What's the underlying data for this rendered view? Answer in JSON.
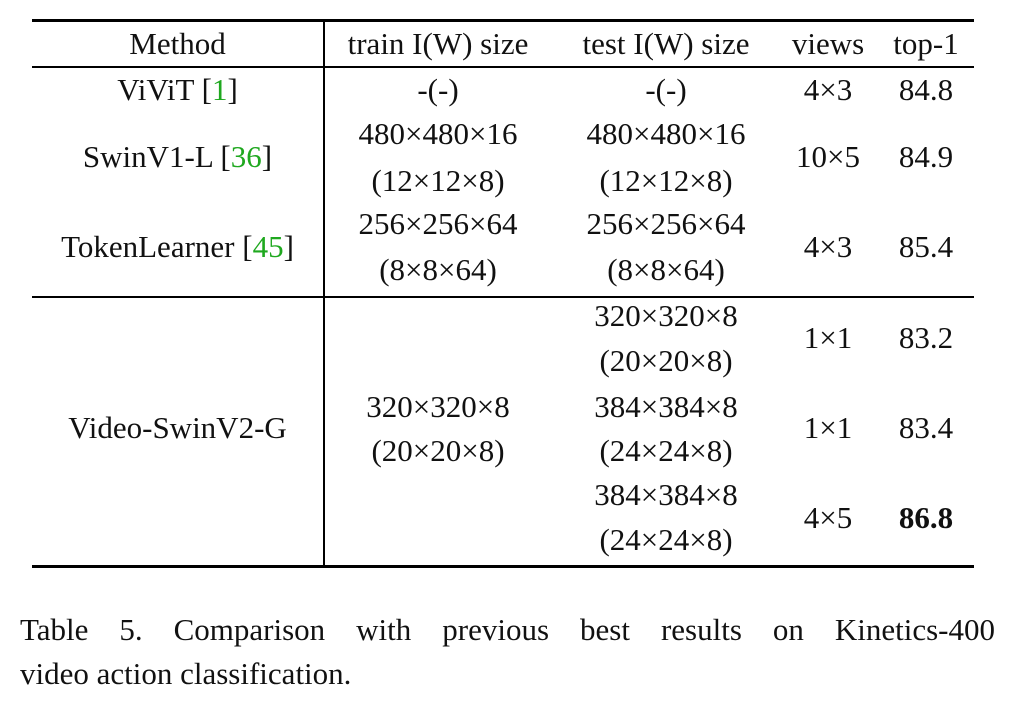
{
  "table": {
    "headers": [
      "Method",
      "train I(W) size",
      "test I(W) size",
      "views",
      "top-1"
    ],
    "rows": [
      {
        "method": "ViViT",
        "ref": "1",
        "train": "-(-)",
        "test": "-(-)",
        "views": "4×3",
        "top1": "84.8"
      },
      {
        "method": "SwinV1-L",
        "ref": "36",
        "train": [
          "480×480×16",
          "(12×12×8)"
        ],
        "test": [
          "480×480×16",
          "(12×12×8)"
        ],
        "views": "10×5",
        "top1": "84.9"
      },
      {
        "method": "TokenLearner",
        "ref": "45",
        "train": [
          "256×256×64",
          "(8×8×64)"
        ],
        "test": [
          "256×256×64",
          "(8×8×64)"
        ],
        "views": "4×3",
        "top1": "85.4"
      }
    ],
    "group": {
      "method": "Video-SwinV2-G",
      "train": [
        "320×320×8",
        "(20×20×8)"
      ],
      "rows": [
        {
          "test": [
            "320×320×8",
            "(20×20×8)"
          ],
          "views": "1×1",
          "top1": "83.2"
        },
        {
          "test": [
            "384×384×8",
            "(24×24×8)"
          ],
          "views": "1×1",
          "top1": "83.4"
        },
        {
          "test": [
            "384×384×8",
            "(24×24×8)"
          ],
          "views": "4×5",
          "top1": "86.8"
        }
      ]
    },
    "ref_color": "#1fa81f"
  },
  "caption": {
    "lines": [
      "Table 5. Comparison with previous best results on Kinetics-400",
      "video action classification."
    ]
  }
}
